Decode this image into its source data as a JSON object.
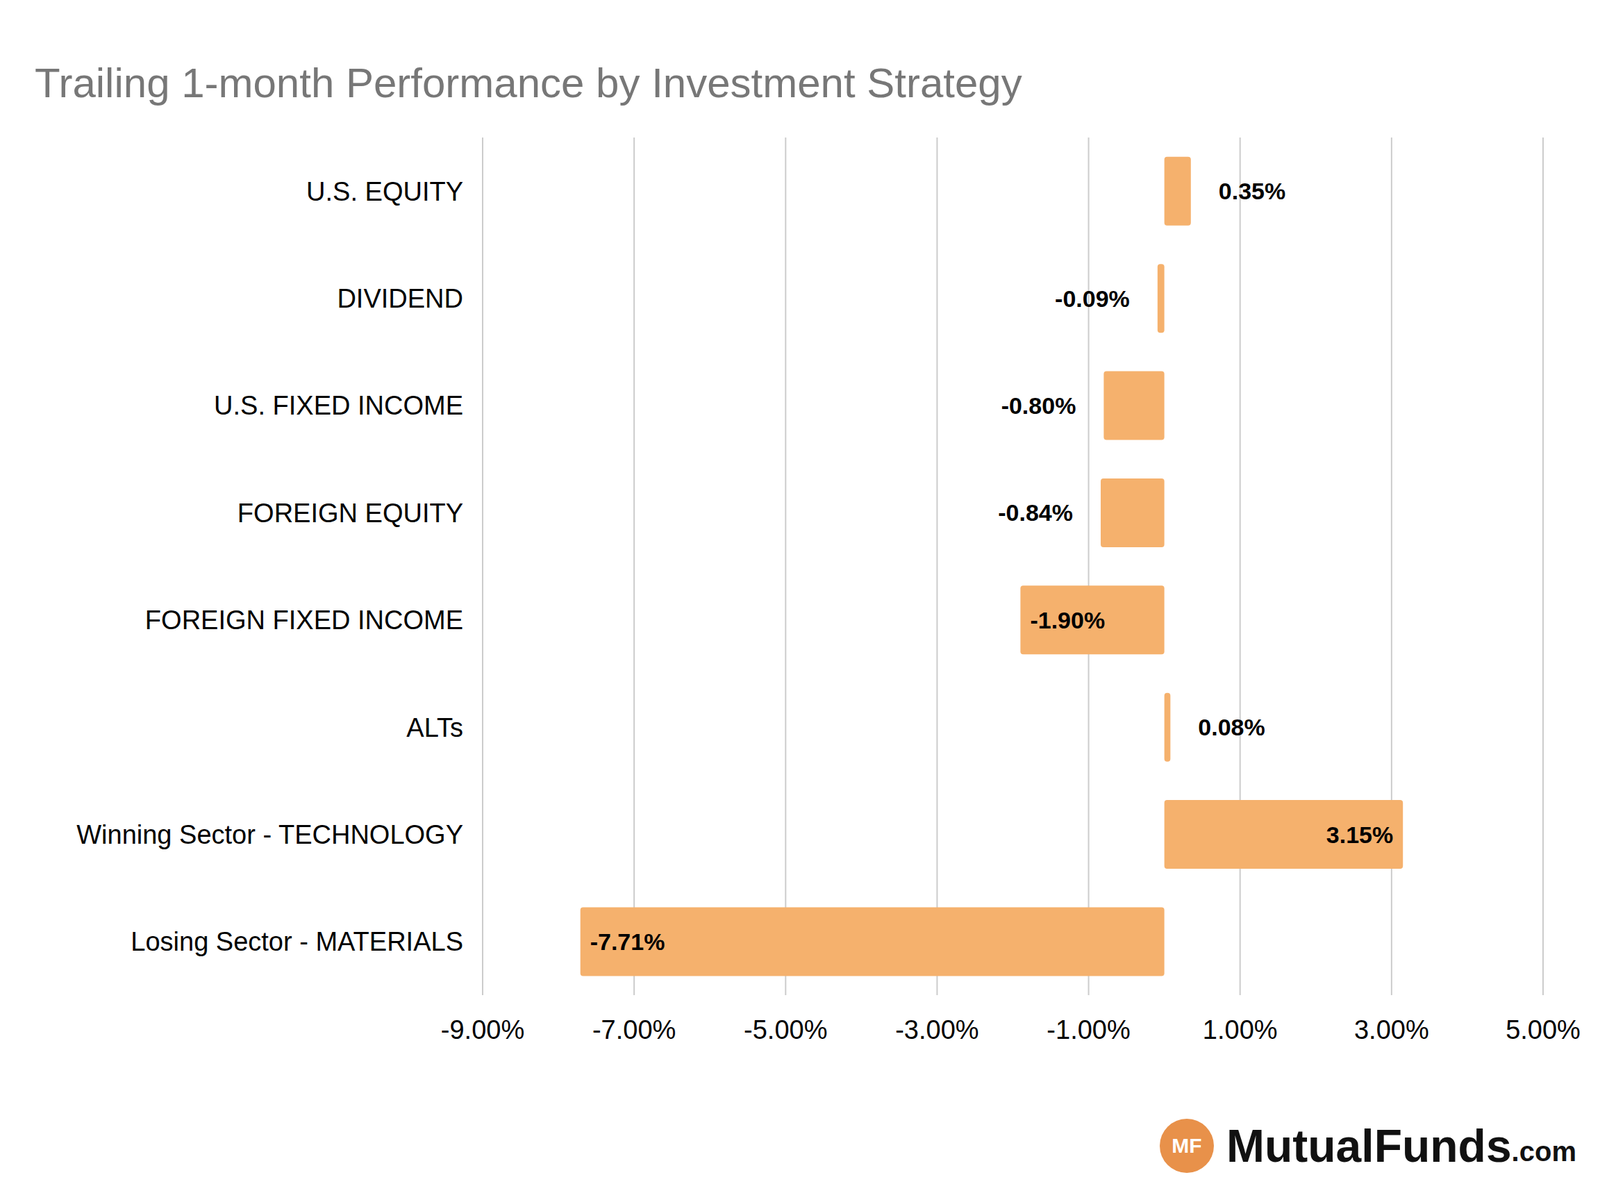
{
  "chart_data": {
    "type": "bar",
    "title": "Trailing 1-month Performance by Investment Strategy",
    "orientation": "horizontal",
    "categories": [
      "U.S. EQUITY",
      "DIVIDEND",
      "U.S. FIXED INCOME",
      "FOREIGN EQUITY",
      "FOREIGN FIXED INCOME",
      "ALTs",
      "Winning Sector - TECHNOLOGY",
      "Losing Sector - MATERIALS"
    ],
    "values": [
      0.35,
      -0.09,
      -0.8,
      -0.84,
      -1.9,
      0.08,
      3.15,
      -7.71
    ],
    "value_labels": [
      "0.35%",
      "-0.09%",
      "-0.80%",
      "-0.84%",
      "-1.90%",
      "0.08%",
      "3.15%",
      "-7.71%"
    ],
    "color": "#f5b16d",
    "xlim": [
      -9,
      5
    ],
    "xticks": [
      {
        "value": -9,
        "label": "-9.00%"
      },
      {
        "value": -7,
        "label": "-7.00%"
      },
      {
        "value": -5,
        "label": "-5.00%"
      },
      {
        "value": -3,
        "label": "-3.00%"
      },
      {
        "value": -1,
        "label": "-1.00%"
      },
      {
        "value": 1,
        "label": "1.00%"
      },
      {
        "value": 3,
        "label": "3.00%"
      },
      {
        "value": 5,
        "label": "5.00%"
      }
    ],
    "grid": true,
    "data_labels": true,
    "logo": {
      "badge": "MF",
      "name": "MutualFunds",
      "suffix": ".com"
    }
  }
}
